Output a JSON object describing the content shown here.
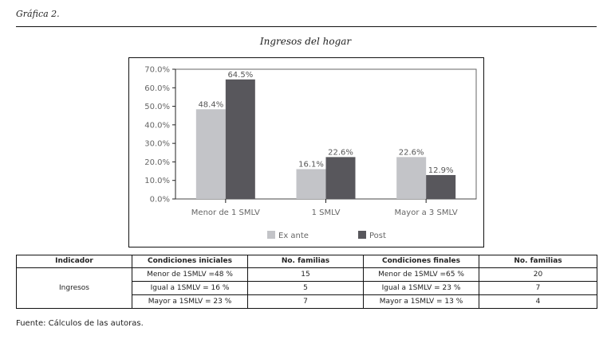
{
  "figure": {
    "caption": "Gráfica 2.",
    "source": "Fuente: Cálculos de las autoras."
  },
  "chart_data": {
    "type": "bar",
    "title": "Ingresos del hogar",
    "xlabel": "",
    "ylabel": "",
    "ylim": [
      0,
      70
    ],
    "yticks": [
      "0.0%",
      "10.0%",
      "20.0%",
      "30.0%",
      "40.0%",
      "50.0%",
      "60.0%",
      "70.0%"
    ],
    "ytick_values": [
      0,
      10,
      20,
      30,
      40,
      50,
      60,
      70
    ],
    "categories": [
      "Menor de 1 SMLV",
      "1 SMLV",
      "Mayor a 3 SMLV"
    ],
    "series": [
      {
        "name": "Ex ante",
        "color": "#c3c4c8",
        "values": [
          48.4,
          16.1,
          22.6
        ],
        "labels": [
          "48.4%",
          "16.1%",
          "22.6%"
        ]
      },
      {
        "name": "Post",
        "color": "#58575c",
        "values": [
          64.5,
          22.6,
          12.9
        ],
        "labels": [
          "64.5%",
          "22.6%",
          "12.9%"
        ]
      }
    ],
    "legend_position": "bottom",
    "grid": false
  },
  "table": {
    "headers": [
      "Indicador",
      "Condiciones iniciales",
      "No. familias",
      "Condiciones finales",
      "No. familias"
    ],
    "indicator": "Ingresos",
    "rows": [
      {
        "initial": "Menor de 1SMLV =48 %",
        "initial_n": "15",
        "final": "Menor de 1SMLV =65 %",
        "final_n": "20"
      },
      {
        "initial": "Igual a 1SMLV = 16 %",
        "initial_n": "5",
        "final": "Igual a 1SMLV = 23 %",
        "final_n": "7"
      },
      {
        "initial": "Mayor a 1SMLV = 23 %",
        "initial_n": "7",
        "final": "Mayor a 1SMLV = 13 %",
        "final_n": "4"
      }
    ]
  }
}
